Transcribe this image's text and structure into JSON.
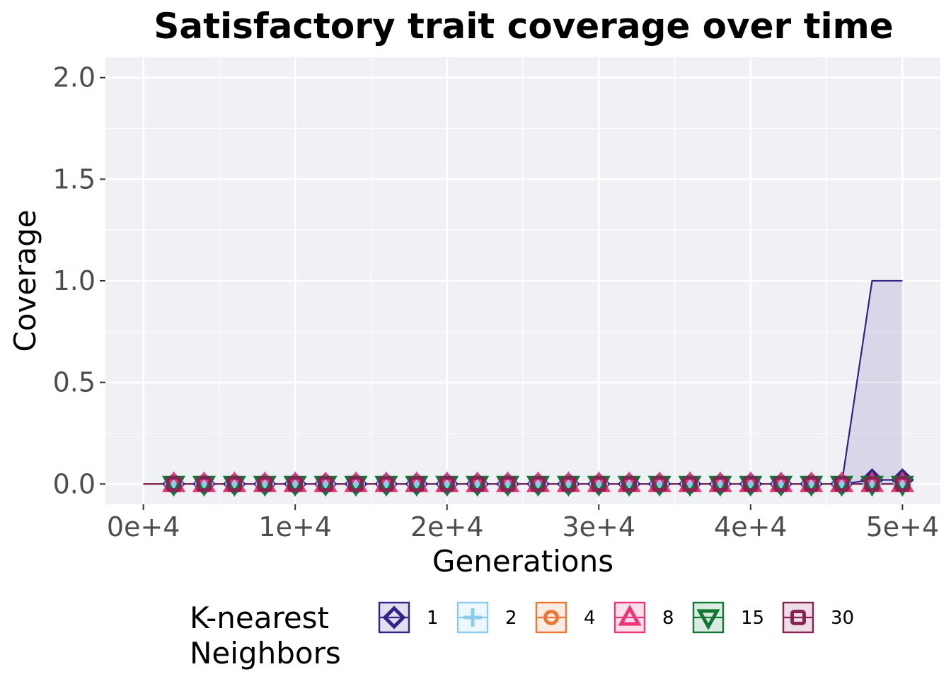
{
  "chart_data": {
    "type": "line",
    "title": "Satisfactory trait coverage over time",
    "xlabel": "Generations",
    "ylabel": "Coverage",
    "xlim": [
      -2500,
      52500
    ],
    "ylim": [
      -0.1,
      2.1
    ],
    "x_ticks": [
      0,
      10000,
      20000,
      30000,
      40000,
      50000
    ],
    "x_tick_labels": [
      "0e+4",
      "1e+4",
      "2e+4",
      "3e+4",
      "4e+4",
      "5e+4"
    ],
    "y_ticks": [
      0,
      0.5,
      1,
      1.5,
      2
    ],
    "y_tick_labels": [
      "0.0",
      "0.5",
      "1.0",
      "1.5",
      "2.0"
    ],
    "grid": true,
    "legend": {
      "title": "K-nearest Neighbors",
      "title_lines": [
        "K-nearest",
        "Neighbors"
      ],
      "placement": "bottom"
    },
    "x": [
      0,
      2000,
      4000,
      6000,
      8000,
      10000,
      12000,
      14000,
      16000,
      18000,
      20000,
      22000,
      24000,
      26000,
      28000,
      30000,
      32000,
      34000,
      36000,
      38000,
      40000,
      42000,
      44000,
      46000,
      48000,
      50000
    ],
    "series": [
      {
        "name": "1",
        "color": "#332288",
        "marker": "diamond",
        "values": [
          0,
          0,
          0,
          0,
          0,
          0,
          0,
          0,
          0,
          0,
          0,
          0,
          0,
          0,
          0,
          0,
          0,
          0,
          0,
          0,
          0,
          0,
          0,
          0,
          0.02,
          0.02
        ],
        "ribbon_upper": [
          0,
          0,
          0,
          0,
          0,
          0,
          0,
          0,
          0,
          0,
          0,
          0,
          0,
          0,
          0,
          0,
          0,
          0,
          0,
          0,
          0,
          0,
          0,
          0,
          1,
          1
        ]
      },
      {
        "name": "2",
        "color": "#88CCEE",
        "marker": "plus",
        "values": [
          0,
          0,
          0,
          0,
          0,
          0,
          0,
          0,
          0,
          0,
          0,
          0,
          0,
          0,
          0,
          0,
          0,
          0,
          0,
          0,
          0,
          0,
          0,
          0,
          0,
          0
        ]
      },
      {
        "name": "4",
        "color": "#EE7733",
        "marker": "circle",
        "values": [
          0,
          0,
          0,
          0,
          0,
          0,
          0,
          0,
          0,
          0,
          0,
          0,
          0,
          0,
          0,
          0,
          0,
          0,
          0,
          0,
          0,
          0,
          0,
          0,
          0,
          0
        ]
      },
      {
        "name": "8",
        "color": "#EE3377",
        "marker": "triangle-up",
        "values": [
          0,
          0,
          0,
          0,
          0,
          0,
          0,
          0,
          0,
          0,
          0,
          0,
          0,
          0,
          0,
          0,
          0,
          0,
          0,
          0,
          0,
          0,
          0,
          0,
          0,
          0
        ]
      },
      {
        "name": "15",
        "color": "#117733",
        "marker": "triangle-down",
        "values": [
          0,
          0,
          0,
          0,
          0,
          0,
          0,
          0,
          0,
          0,
          0,
          0,
          0,
          0,
          0,
          0,
          0,
          0,
          0,
          0,
          0,
          0,
          0,
          0,
          0,
          0
        ]
      },
      {
        "name": "30",
        "color": "#882255",
        "marker": "square",
        "values": [
          0,
          0,
          0,
          0,
          0,
          0,
          0,
          0,
          0,
          0,
          0,
          0,
          0,
          0,
          0,
          0,
          0,
          0,
          0,
          0,
          0,
          0,
          0,
          0,
          0,
          0
        ]
      }
    ]
  }
}
